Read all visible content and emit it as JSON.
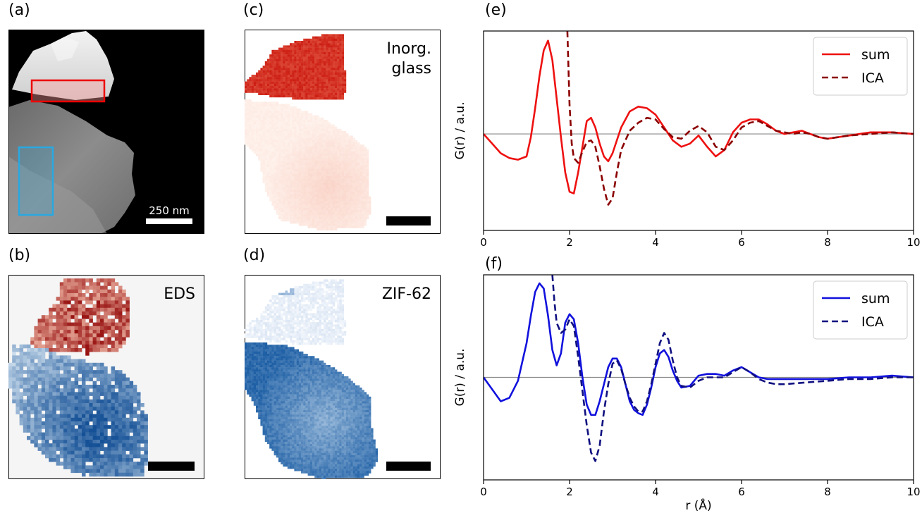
{
  "panels": {
    "a": {
      "label": "(a)",
      "scale_bar": "250 nm"
    },
    "b": {
      "label": "(b)",
      "title": "EDS"
    },
    "c": {
      "label": "(c)",
      "title_line1": "Inorg.",
      "title_line2": "glass"
    },
    "d": {
      "label": "(d)",
      "title": "ZIF-62"
    },
    "e": {
      "label": "(e)"
    },
    "f": {
      "label": "(f)"
    }
  },
  "colors": {
    "red": "#ee1111",
    "darkred": "#8b0000",
    "blue": "#1111dd",
    "darkblue": "#101080",
    "haadf_box_red": "#ee0000",
    "haadf_box_blue": "#2aa8e0"
  },
  "chart_data": [
    {
      "type": "line",
      "panel": "e",
      "xlabel": "",
      "ylabel": "G(r) / a.u.",
      "xlim": [
        0,
        10
      ],
      "ylim": [
        -3.0,
        3.2
      ],
      "xticks": [
        "0",
        "2",
        "4",
        "6",
        "8",
        "10"
      ],
      "yticks": [],
      "baseline": 0,
      "legend_position": "top-right",
      "series": [
        {
          "name": "sum",
          "style": "solid",
          "color": "#ee1111",
          "x": [
            0,
            0.2,
            0.4,
            0.6,
            0.8,
            1.0,
            1.1,
            1.2,
            1.3,
            1.4,
            1.5,
            1.6,
            1.7,
            1.8,
            1.9,
            2.0,
            2.1,
            2.2,
            2.3,
            2.4,
            2.5,
            2.6,
            2.7,
            2.8,
            2.9,
            3.0,
            3.2,
            3.4,
            3.6,
            3.8,
            4.0,
            4.2,
            4.4,
            4.6,
            4.8,
            5.0,
            5.2,
            5.4,
            5.6,
            5.8,
            6.0,
            6.2,
            6.4,
            6.6,
            6.8,
            7.0,
            7.2,
            7.4,
            7.6,
            7.8,
            8.0,
            8.5,
            9.0,
            9.5,
            10.0
          ],
          "y": [
            0,
            -0.3,
            -0.6,
            -0.75,
            -0.8,
            -0.7,
            -0.1,
            0.8,
            1.8,
            2.6,
            2.9,
            2.3,
            1.1,
            -0.1,
            -1.2,
            -1.8,
            -1.85,
            -1.2,
            -0.4,
            0.4,
            0.5,
            0.2,
            -0.3,
            -0.7,
            -0.85,
            -0.6,
            0.2,
            0.7,
            0.85,
            0.8,
            0.6,
            0.2,
            -0.2,
            -0.4,
            -0.3,
            -0.05,
            -0.4,
            -0.7,
            -0.5,
            0.05,
            0.35,
            0.45,
            0.45,
            0.3,
            0.1,
            0.0,
            0.05,
            0.1,
            0.0,
            -0.1,
            -0.15,
            -0.05,
            0.05,
            0.05,
            0.0
          ]
        },
        {
          "name": "ICA",
          "style": "dashed",
          "color": "#8b0000",
          "x": [
            1.95,
            2.0,
            2.05,
            2.1,
            2.2,
            2.3,
            2.4,
            2.5,
            2.6,
            2.7,
            2.8,
            2.9,
            3.0,
            3.1,
            3.2,
            3.4,
            3.6,
            3.8,
            4.0,
            4.2,
            4.4,
            4.6,
            4.8,
            5.0,
            5.2,
            5.4,
            5.6,
            5.8,
            6.0,
            6.2,
            6.4,
            6.6,
            6.8,
            7.0,
            7.2,
            7.4,
            7.6,
            7.8,
            8.0,
            8.5,
            9.0,
            9.5,
            10.0
          ],
          "y": [
            3.2,
            0.9,
            -0.3,
            -0.75,
            -0.9,
            -0.55,
            -0.25,
            -0.2,
            -0.4,
            -1.0,
            -1.7,
            -2.2,
            -2.0,
            -1.2,
            -0.5,
            0.1,
            0.35,
            0.5,
            0.45,
            0.15,
            -0.1,
            -0.15,
            0.1,
            0.25,
            0.05,
            -0.4,
            -0.5,
            -0.2,
            0.2,
            0.35,
            0.4,
            0.25,
            0.1,
            0.05,
            0.0,
            0.05,
            0.0,
            -0.1,
            -0.15,
            -0.05,
            0.0,
            0.05,
            0.0
          ]
        }
      ]
    },
    {
      "type": "line",
      "panel": "f",
      "xlabel": "r (Å)",
      "ylabel": "G(r) / a.u.",
      "xlim": [
        0,
        10
      ],
      "ylim": [
        -3.0,
        3.0
      ],
      "xticks": [
        "0",
        "2",
        "4",
        "6",
        "8",
        "10"
      ],
      "yticks": [],
      "baseline": 0,
      "legend_position": "top-right",
      "series": [
        {
          "name": "sum",
          "style": "solid",
          "color": "#1111dd",
          "x": [
            0,
            0.2,
            0.4,
            0.6,
            0.8,
            1.0,
            1.1,
            1.2,
            1.3,
            1.4,
            1.5,
            1.6,
            1.7,
            1.8,
            1.9,
            2.0,
            2.1,
            2.2,
            2.3,
            2.4,
            2.5,
            2.6,
            2.7,
            2.8,
            2.9,
            3.0,
            3.1,
            3.2,
            3.3,
            3.4,
            3.5,
            3.6,
            3.7,
            3.8,
            3.9,
            4.0,
            4.1,
            4.2,
            4.3,
            4.4,
            4.5,
            4.6,
            4.8,
            5.0,
            5.2,
            5.4,
            5.6,
            5.8,
            6.0,
            6.2,
            6.4,
            6.6,
            6.8,
            7.0,
            7.5,
            8.0,
            8.5,
            9.0,
            9.5,
            10.0
          ],
          "y": [
            0,
            -0.35,
            -0.7,
            -0.6,
            -0.1,
            1.0,
            1.8,
            2.5,
            2.75,
            2.6,
            1.8,
            0.8,
            0.35,
            0.7,
            1.6,
            1.85,
            1.7,
            1.0,
            0.0,
            -0.8,
            -1.1,
            -1.1,
            -0.7,
            -0.2,
            0.3,
            0.55,
            0.55,
            0.3,
            -0.2,
            -0.7,
            -0.95,
            -1.05,
            -1.1,
            -0.8,
            -0.3,
            0.3,
            0.7,
            0.8,
            0.6,
            0.2,
            -0.1,
            -0.3,
            -0.25,
            0.05,
            0.1,
            0.1,
            0.05,
            0.2,
            0.3,
            0.15,
            0.0,
            -0.05,
            -0.05,
            -0.05,
            -0.05,
            -0.05,
            0.0,
            0.0,
            0.05,
            0.0
          ]
        },
        {
          "name": "ICA",
          "style": "dashed",
          "color": "#101080",
          "x": [
            1.6,
            1.65,
            1.7,
            1.8,
            1.9,
            2.0,
            2.1,
            2.2,
            2.3,
            2.4,
            2.5,
            2.6,
            2.7,
            2.8,
            2.9,
            3.0,
            3.1,
            3.2,
            3.3,
            3.4,
            3.5,
            3.6,
            3.7,
            3.8,
            3.9,
            4.0,
            4.1,
            4.2,
            4.3,
            4.4,
            4.5,
            4.6,
            4.8,
            5.0,
            5.2,
            5.4,
            5.6,
            5.8,
            6.0,
            6.2,
            6.4,
            6.6,
            6.8,
            7.0,
            7.5,
            8.0,
            8.5,
            9.0,
            9.5,
            10.0
          ],
          "y": [
            3.0,
            2.2,
            1.6,
            1.3,
            1.4,
            1.7,
            1.5,
            0.6,
            -0.4,
            -1.4,
            -2.2,
            -2.45,
            -2.0,
            -1.0,
            -0.2,
            0.4,
            0.5,
            0.25,
            -0.2,
            -0.6,
            -0.85,
            -1.0,
            -1.0,
            -0.7,
            -0.2,
            0.4,
            1.0,
            1.3,
            1.1,
            0.5,
            0.0,
            -0.25,
            -0.3,
            -0.1,
            0.0,
            0.0,
            0.0,
            0.15,
            0.3,
            0.15,
            -0.05,
            -0.15,
            -0.2,
            -0.2,
            -0.15,
            -0.1,
            -0.05,
            -0.05,
            0.0,
            0.0
          ]
        }
      ]
    }
  ]
}
